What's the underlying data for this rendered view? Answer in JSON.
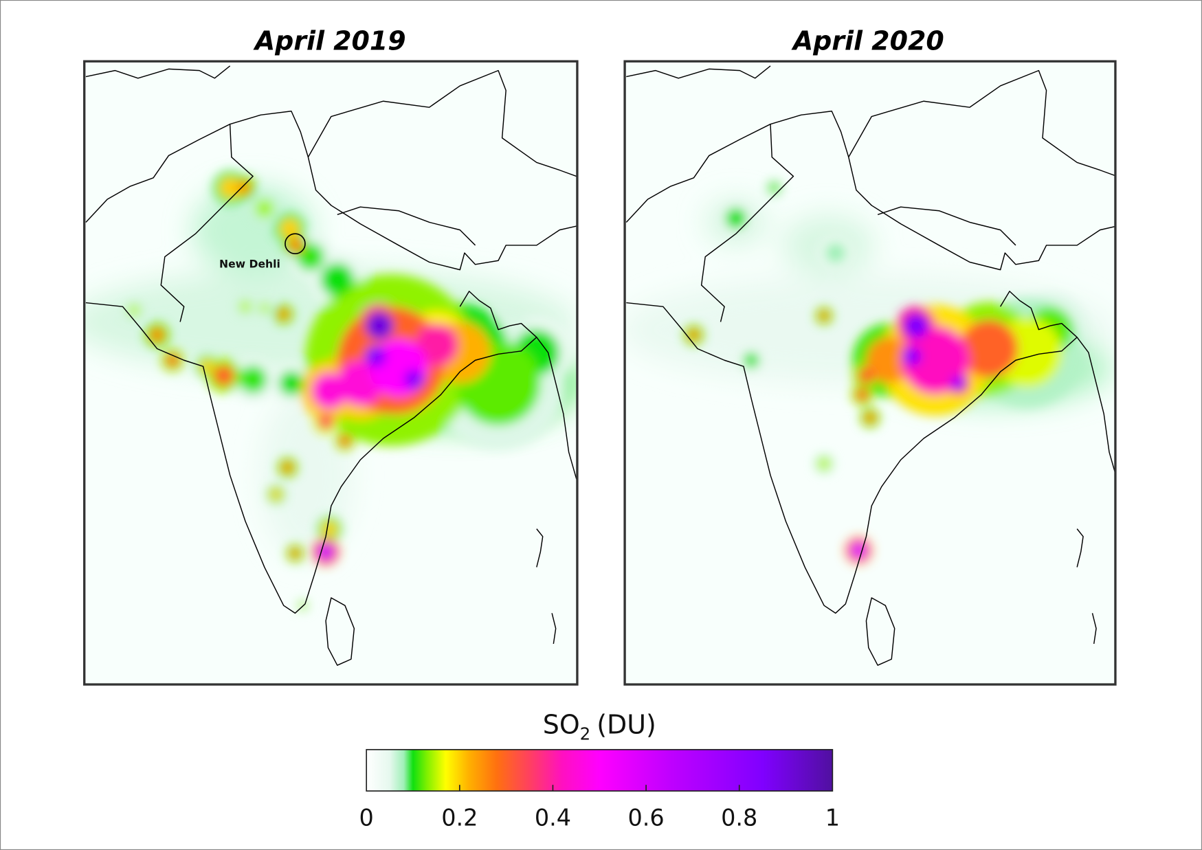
{
  "panels": [
    {
      "title": "April 2019",
      "annotation": "New Dehli"
    },
    {
      "title": "April 2020"
    }
  ],
  "colorbar": {
    "label_base": "SO",
    "label_sub": "2",
    "label_unit": "(DU)",
    "range": [
      0,
      1
    ],
    "ticks": [
      "0",
      "0.2",
      "0.4",
      "0.6",
      "0.8",
      "1"
    ],
    "stops": [
      [
        0,
        "#ffffff"
      ],
      [
        0.05,
        "#e6f8ee"
      ],
      [
        0.08,
        "#a0f0b8"
      ],
      [
        0.1,
        "#10e010"
      ],
      [
        0.13,
        "#80f000"
      ],
      [
        0.17,
        "#ffff00"
      ],
      [
        0.22,
        "#ffb000"
      ],
      [
        0.28,
        "#ff7010"
      ],
      [
        0.35,
        "#ff4060"
      ],
      [
        0.42,
        "#ff10c0"
      ],
      [
        0.5,
        "#ff00ff"
      ],
      [
        0.65,
        "#c000ff"
      ],
      [
        0.85,
        "#8000ff"
      ],
      [
        1,
        "#5010a0"
      ]
    ]
  }
}
